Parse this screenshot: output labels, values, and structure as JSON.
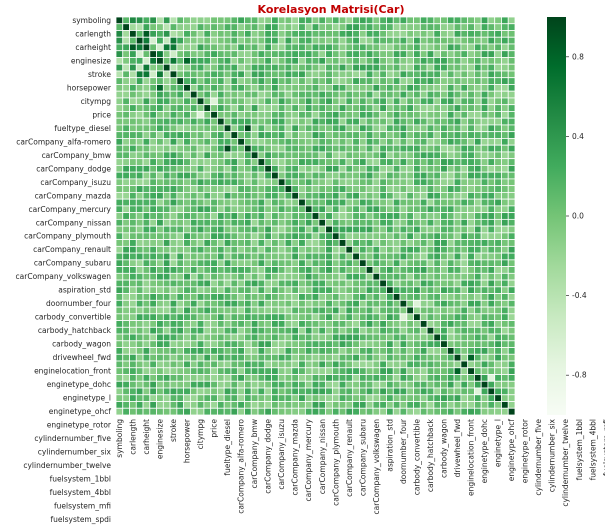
{
  "chart_data": {
    "type": "heatmap",
    "title": "Korelasyon Matrisi(Car)",
    "title_color": "#c00000",
    "colormap": "Greens",
    "vmin": -1.0,
    "vmax": 1.0,
    "colorbar_ticks": [
      0.8,
      0.4,
      0.0,
      -0.4,
      -0.8
    ],
    "colorbar_tick_labels": [
      "0.8",
      "0.4",
      "0.0",
      "-0.4",
      "-0.8"
    ],
    "n_variables": 59,
    "diagonal_value": 1.0,
    "y_tick_labels": [
      "symboling",
      "carlength",
      "carheight",
      "enginesize",
      "stroke",
      "horsepower",
      "citympg",
      "price",
      "fueltype_diesel",
      "carCompany_alfa-romero",
      "carCompany_bmw",
      "carCompany_dodge",
      "carCompany_isuzu",
      "carCompany_mazda",
      "carCompany_mercury",
      "carCompany_nissan",
      "carCompany_plymouth",
      "carCompany_renault",
      "carCompany_subaru",
      "carCompany_volkswagen",
      "aspiration_std",
      "doornumber_four",
      "carbody_convertible",
      "carbody_hatchback",
      "carbody_wagon",
      "drivewheel_fwd",
      "enginelocation_front",
      "enginetype_dohc",
      "enginetype_l",
      "enginetype_ohcf",
      "enginetype_rotor",
      "cylindernumber_five",
      "cylindernumber_six",
      "cylindernumber_twelve",
      "fuelsystem_1bbl",
      "fuelsystem_4bbl",
      "fuelsystem_mfi",
      "fuelsystem_spdi"
    ],
    "x_tick_labels": [
      "symboling",
      "carlength",
      "carheight",
      "enginesize",
      "stroke",
      "horsepower",
      "citympg",
      "price",
      "fueltype_diesel",
      "carCompany_alfa-romero",
      "carCompany_bmw",
      "carCompany_dodge",
      "carCompany_isuzu",
      "carCompany_mazda",
      "carCompany_mercury",
      "carCompany_nissan",
      "carCompany_plymouth",
      "carCompany_renault",
      "carCompany_subaru",
      "carCompany_volkswagen",
      "aspiration_std",
      "doornumber_four",
      "carbody_convertible",
      "carbody_hatchback",
      "carbody_wagon",
      "drivewheel_fwd",
      "enginelocation_front",
      "enginetype_dohc",
      "enginetype_l",
      "enginetype_ohcf",
      "enginetype_rotor",
      "cylindernumber_five",
      "cylindernumber_six",
      "cylindernumber_twelve",
      "fuelsystem_1bbl",
      "fuelsystem_4bbl",
      "fuelsystem_mfi",
      "fuelsystem_spdi"
    ],
    "tick_label_every": 2,
    "notable_values": [
      {
        "row": 0,
        "col": 0,
        "value": 1.0
      },
      {
        "row": 2,
        "col": 4,
        "value": 0.88
      },
      {
        "row": 6,
        "col": 10,
        "value": 0.81
      },
      {
        "row": 12,
        "col": 14,
        "value": -0.69
      },
      {
        "row": 16,
        "col": 19,
        "value": 0.97
      },
      {
        "row": 42,
        "col": 44,
        "value": -0.69
      },
      {
        "row": 50,
        "col": 52,
        "value": 0.82
      },
      {
        "row": 53,
        "col": 55,
        "value": -0.71
      }
    ]
  }
}
